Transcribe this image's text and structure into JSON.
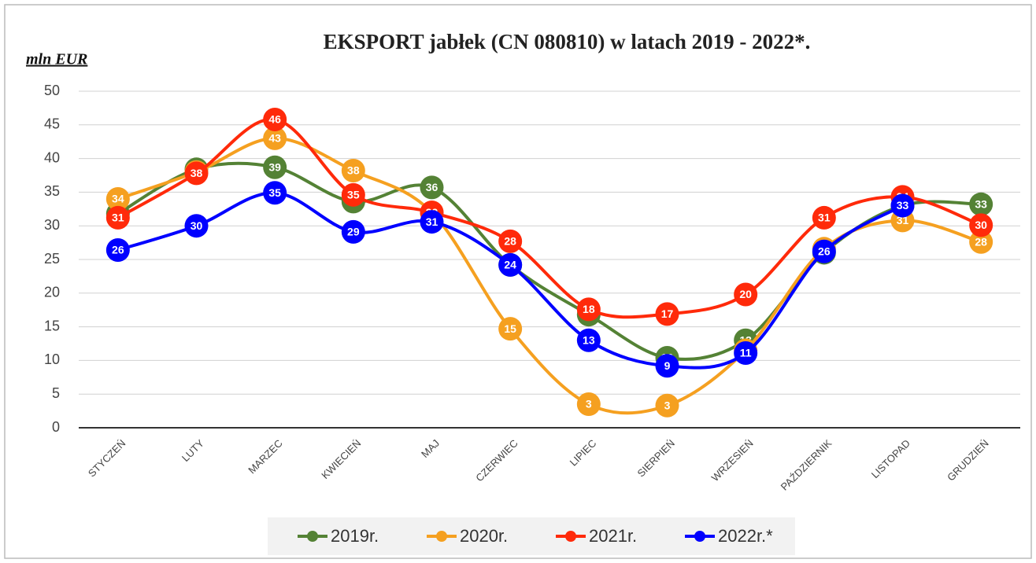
{
  "chart_data": {
    "type": "line",
    "title": "EKSPORT jabłek (CN 080810) w latach 2019 - 2022*.",
    "y_label": "mln EUR",
    "categories": [
      "STYCZEŃ",
      "LUTY",
      "MARZEC",
      "KWIECIEŃ",
      "MAJ",
      "CZERWIEC",
      "LIPIEC",
      "SIERPIEŃ",
      "WRZESIEŃ",
      "PAŹDZIERNIK",
      "LISTOPAD",
      "GRUDZIEŃ"
    ],
    "ylim": [
      0,
      50
    ],
    "yticks": [
      0,
      5,
      10,
      15,
      20,
      25,
      30,
      35,
      40,
      45,
      50
    ],
    "grid": true,
    "legend": "bottom",
    "series": [
      {
        "name": "2019r.",
        "color": "#548235",
        "values": [
          31.8,
          38.4,
          38.7,
          33.6,
          35.7,
          24.2,
          16.8,
          10.4,
          13.0,
          26.0,
          33.0,
          33.2
        ],
        "value_labels": [
          "32",
          "38",
          "39",
          "34",
          "36",
          "24",
          "17",
          "10",
          "13",
          "26",
          "33",
          "33"
        ]
      },
      {
        "name": "2020r.",
        "color": "#f5a020",
        "values": [
          34.0,
          38.0,
          43.0,
          38.2,
          32.0,
          14.7,
          3.5,
          3.3,
          11.5,
          26.6,
          30.8,
          27.6
        ],
        "value_labels": [
          "34",
          "38",
          "43",
          "38",
          "32",
          "15",
          "3",
          "3",
          "12",
          "27",
          "31",
          "28"
        ]
      },
      {
        "name": "2021r.",
        "color": "#ff2a0a",
        "values": [
          31.2,
          37.8,
          45.8,
          34.6,
          32.0,
          27.7,
          17.6,
          16.9,
          19.8,
          31.2,
          34.3,
          30.1
        ],
        "value_labels": [
          "31",
          "38",
          "46",
          "35",
          "32",
          "28",
          "18",
          "17",
          "20",
          "31",
          "34",
          "30"
        ]
      },
      {
        "name": "2022r.*",
        "color": "#0000ff",
        "values": [
          26.4,
          30.0,
          34.9,
          29.1,
          30.6,
          24.2,
          13.0,
          9.2,
          11.1,
          26.2,
          33.0,
          null
        ],
        "value_labels": [
          "26",
          "30",
          "35",
          "29",
          "31",
          "24",
          "13",
          "9",
          "11",
          "26",
          "33",
          null
        ]
      }
    ]
  }
}
